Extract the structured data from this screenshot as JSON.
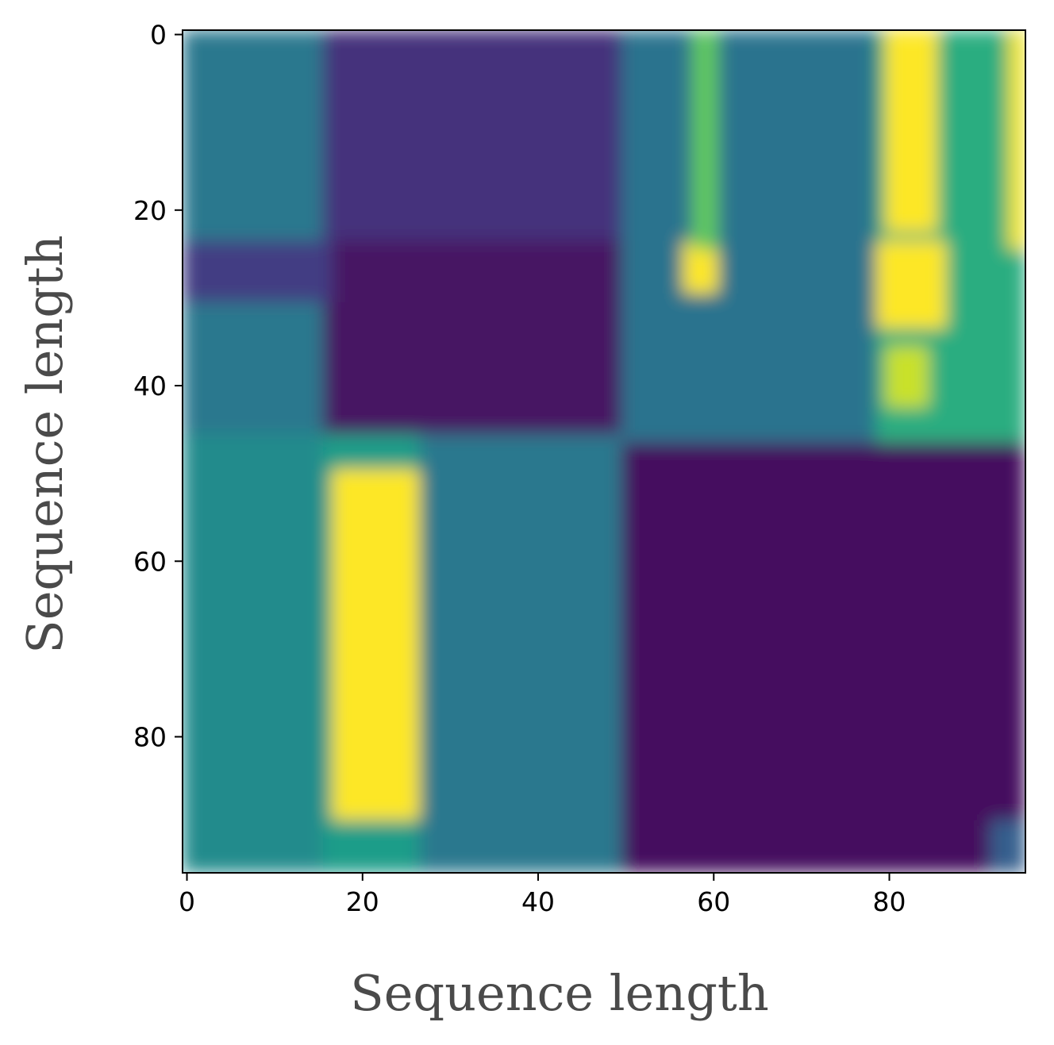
{
  "chart_data": {
    "type": "heatmap",
    "title": "",
    "xlabel": "Sequence length",
    "ylabel": "Sequence length",
    "xlim": [
      -0.5,
      95.5
    ],
    "ylim": [
      95.5,
      -0.5
    ],
    "x_ticks": [
      0,
      20,
      40,
      60,
      80
    ],
    "y_ticks": [
      0,
      20,
      40,
      60,
      80
    ],
    "colormap": "viridis",
    "value_range": [
      0,
      1
    ],
    "grid": false,
    "legend": "none",
    "colors": {
      "low": "#440154",
      "mid": "#21918c",
      "high": "#fde725"
    },
    "blocks": [
      {
        "rows": [
          0,
          95
        ],
        "cols": [
          0,
          95
        ],
        "value": 0.3
      },
      {
        "rows": [
          0,
          46
        ],
        "cols": [
          0,
          16
        ],
        "value": 0.4
      },
      {
        "rows": [
          0,
          46
        ],
        "cols": [
          16,
          50
        ],
        "value": 0.14
      },
      {
        "rows": [
          24,
          46
        ],
        "cols": [
          16,
          51
        ],
        "value": 0.05
      },
      {
        "rows": [
          24,
          30
        ],
        "cols": [
          0,
          16
        ],
        "value": 0.18
      },
      {
        "rows": [
          0,
          46
        ],
        "cols": [
          50,
          79
        ],
        "value": 0.38
      },
      {
        "rows": [
          0,
          46
        ],
        "cols": [
          79,
          95
        ],
        "value": 0.62
      },
      {
        "rows": [
          0,
          22
        ],
        "cols": [
          80,
          85
        ],
        "value": 1.0
      },
      {
        "rows": [
          24,
          33
        ],
        "cols": [
          79,
          86
        ],
        "value": 1.0
      },
      {
        "rows": [
          36,
          42
        ],
        "cols": [
          80,
          84
        ],
        "value": 0.92
      },
      {
        "rows": [
          0,
          24
        ],
        "cols": [
          94,
          95
        ],
        "value": 0.98
      },
      {
        "rows": [
          24,
          29
        ],
        "cols": [
          57,
          60
        ],
        "value": 1.0
      },
      {
        "rows": [
          0,
          24
        ],
        "cols": [
          58,
          60
        ],
        "value": 0.75
      },
      {
        "rows": [
          46,
          95
        ],
        "cols": [
          0,
          16
        ],
        "value": 0.48
      },
      {
        "rows": [
          46,
          95
        ],
        "cols": [
          16,
          27
        ],
        "value": 0.55
      },
      {
        "rows": [
          50,
          89
        ],
        "cols": [
          17,
          27
        ],
        "value": 1.0
      },
      {
        "rows": [
          46,
          95
        ],
        "cols": [
          27,
          50
        ],
        "value": 0.4
      },
      {
        "rows": [
          47,
          95
        ],
        "cols": [
          50,
          95
        ],
        "value": 0.03
      },
      {
        "rows": [
          90,
          95
        ],
        "cols": [
          92,
          95
        ],
        "value": 0.3
      }
    ]
  }
}
